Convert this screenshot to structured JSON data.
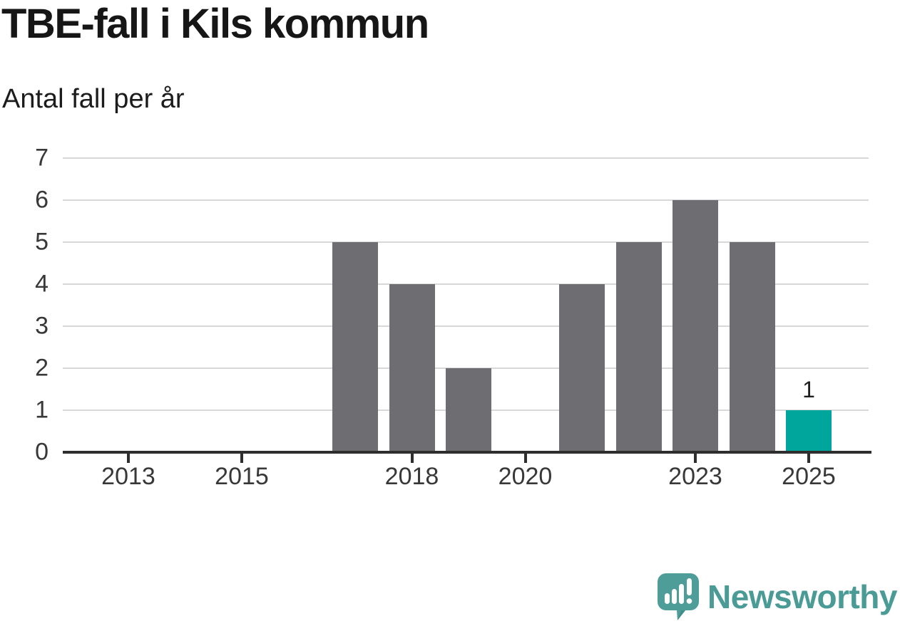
{
  "header": {
    "title": "TBE-fall i Kils kommun",
    "subtitle": "Antal fall per år"
  },
  "chart_data": {
    "type": "bar",
    "title": "TBE-fall i Kils kommun",
    "subtitle": "Antal fall per år",
    "ylabel": "Antal fall per år",
    "xlabel": "",
    "categories": [
      2013,
      2014,
      2015,
      2016,
      2017,
      2018,
      2019,
      2020,
      2021,
      2022,
      2023,
      2024,
      2025
    ],
    "values": [
      0,
      0,
      0,
      0,
      5,
      4,
      2,
      0,
      4,
      5,
      6,
      5,
      1
    ],
    "highlight_year": 2025,
    "bar_color": "#6e6d72",
    "highlight_color": "#00a59b",
    "grid": true,
    "grid_color": "#d8d8d8",
    "axis_color": "#2e2e2e",
    "y_ticks": [
      0,
      1,
      2,
      3,
      4,
      5,
      6,
      7
    ],
    "ylim": [
      0,
      7
    ],
    "x_tick_labels": [
      "2013",
      "2015",
      "2018",
      "2020",
      "2023",
      "2025"
    ],
    "annotations": [
      {
        "year": 2025,
        "text": "1"
      }
    ],
    "legend_position": "none"
  },
  "footer": {
    "brand_name": "Newsworthy",
    "brand_color": "#4a9a96",
    "logo_color": "#4f9d98",
    "logo_tail_color": "#3f8e89",
    "logo_icon": "newsworthy-speech-bubble-bar-chart-icon"
  }
}
